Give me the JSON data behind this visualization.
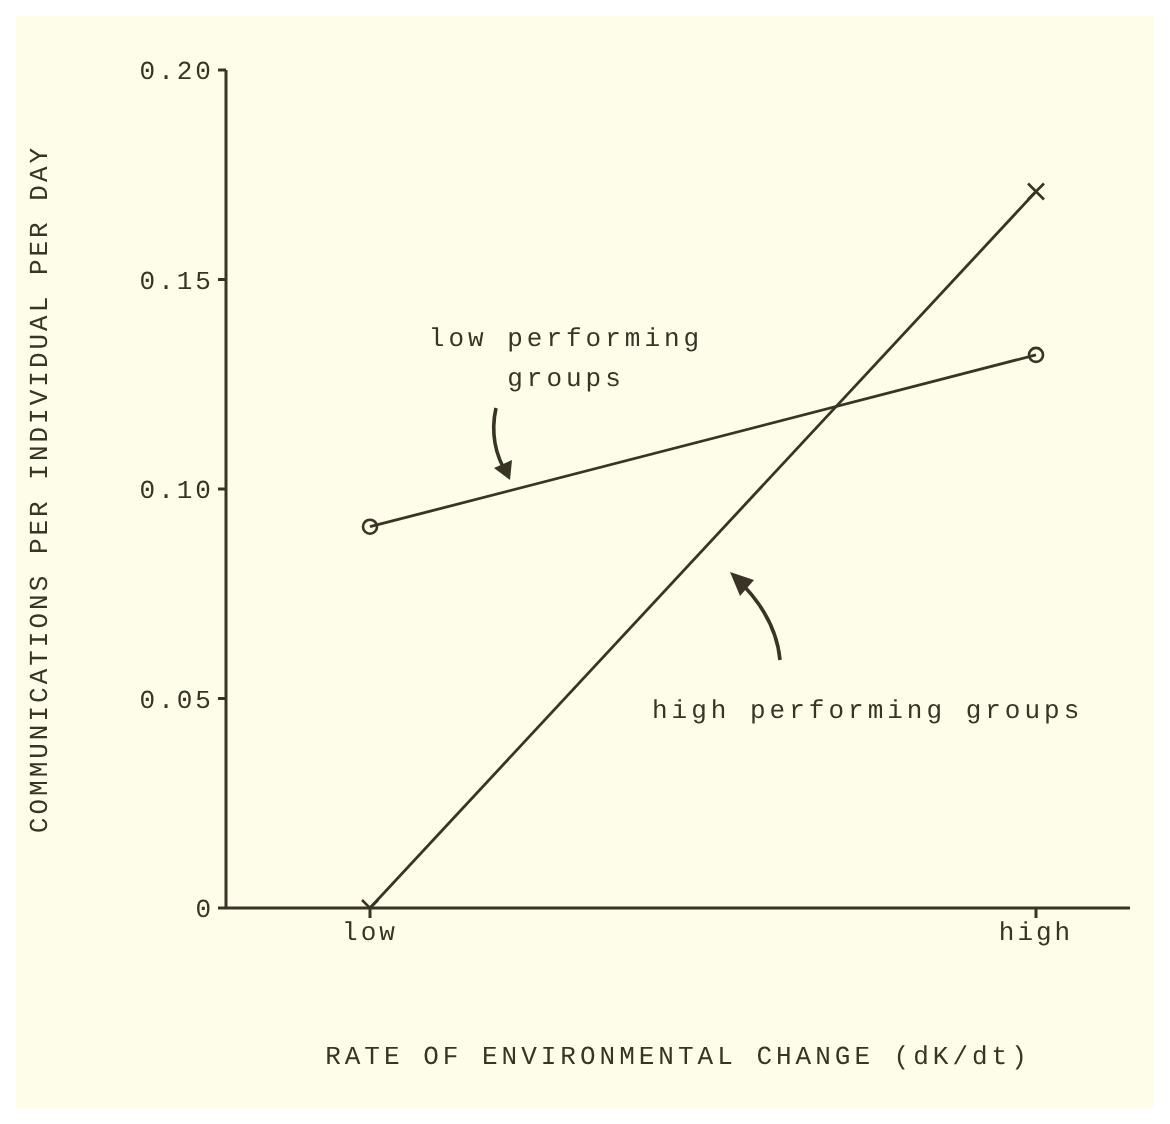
{
  "chart_data": {
    "type": "line",
    "xlabel": "RATE OF ENVIRONMENTAL CHANGE (dK/dt)",
    "ylabel": "COMMUNICATIONS PER INDIVIDUAL PER DAY",
    "categories": [
      "low",
      "high"
    ],
    "series": [
      {
        "name": "low performing groups",
        "color": "#3a3426",
        "values": [
          0.091,
          0.132
        ],
        "marker": "circle"
      },
      {
        "name": "high performing groups",
        "color": "#3a3426",
        "values": [
          0,
          0.171
        ],
        "marker": "cross"
      }
    ],
    "ylim": [
      0,
      0.2
    ],
    "yticks": [
      0,
      0.05,
      {
        "value": 0.1,
        "label": "0.10"
      },
      0.15,
      {
        "value": 0.2,
        "label": "0.20"
      }
    ],
    "grid": false,
    "legend": false,
    "line_style": "solid"
  }
}
